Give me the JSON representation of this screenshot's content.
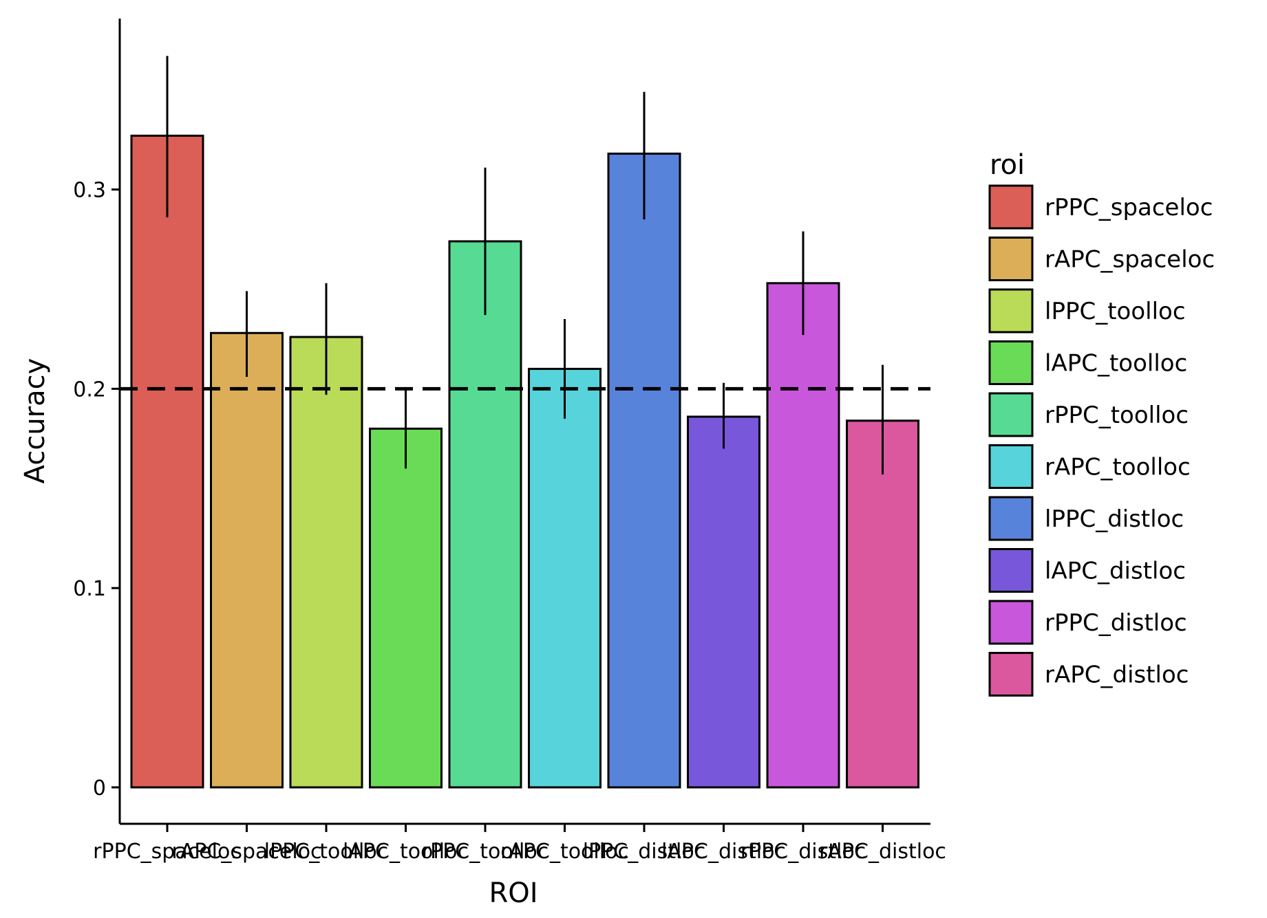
{
  "chart_data": {
    "type": "bar",
    "xlabel": "ROI",
    "ylabel": "Accuracy",
    "ylim": [
      0,
      0.38
    ],
    "yticks": [
      0,
      0.1,
      0.2,
      0.3
    ],
    "ytick_labels": [
      "0",
      "0.1",
      "0.2",
      "0.3"
    ],
    "reference_line": {
      "y": 0.2,
      "style": "dashed"
    },
    "categories": [
      "rPPC_spaceloc",
      "rAPC_spaceloc",
      "lPPC_toolloc",
      "lAPC_toolloc",
      "rPPC_toolloc",
      "rAPC_toolloc",
      "lPPC_distloc",
      "lAPC_distloc",
      "rPPC_distloc",
      "rAPC_distloc"
    ],
    "values": [
      0.327,
      0.228,
      0.226,
      0.18,
      0.274,
      0.21,
      0.318,
      0.186,
      0.253,
      0.184
    ],
    "error_low": [
      0.286,
      0.206,
      0.197,
      0.16,
      0.237,
      0.185,
      0.285,
      0.17,
      0.227,
      0.157
    ],
    "error_high": [
      0.367,
      0.249,
      0.253,
      0.2,
      0.311,
      0.235,
      0.349,
      0.203,
      0.279,
      0.212
    ],
    "colors": [
      "#DB5F57",
      "#DBAE57",
      "#BADB57",
      "#6ADB57",
      "#57DB94",
      "#57D3DB",
      "#5783DB",
      "#7957DB",
      "#C957DB",
      "#DB579E"
    ],
    "legend": {
      "title": "roi",
      "position": "right",
      "entries": [
        "rPPC_spaceloc",
        "rAPC_spaceloc",
        "lPPC_toolloc",
        "lAPC_toolloc",
        "rPPC_toolloc",
        "rAPC_toolloc",
        "lPPC_distloc",
        "lAPC_distloc",
        "rPPC_distloc",
        "rAPC_distloc"
      ]
    },
    "grid": false
  }
}
